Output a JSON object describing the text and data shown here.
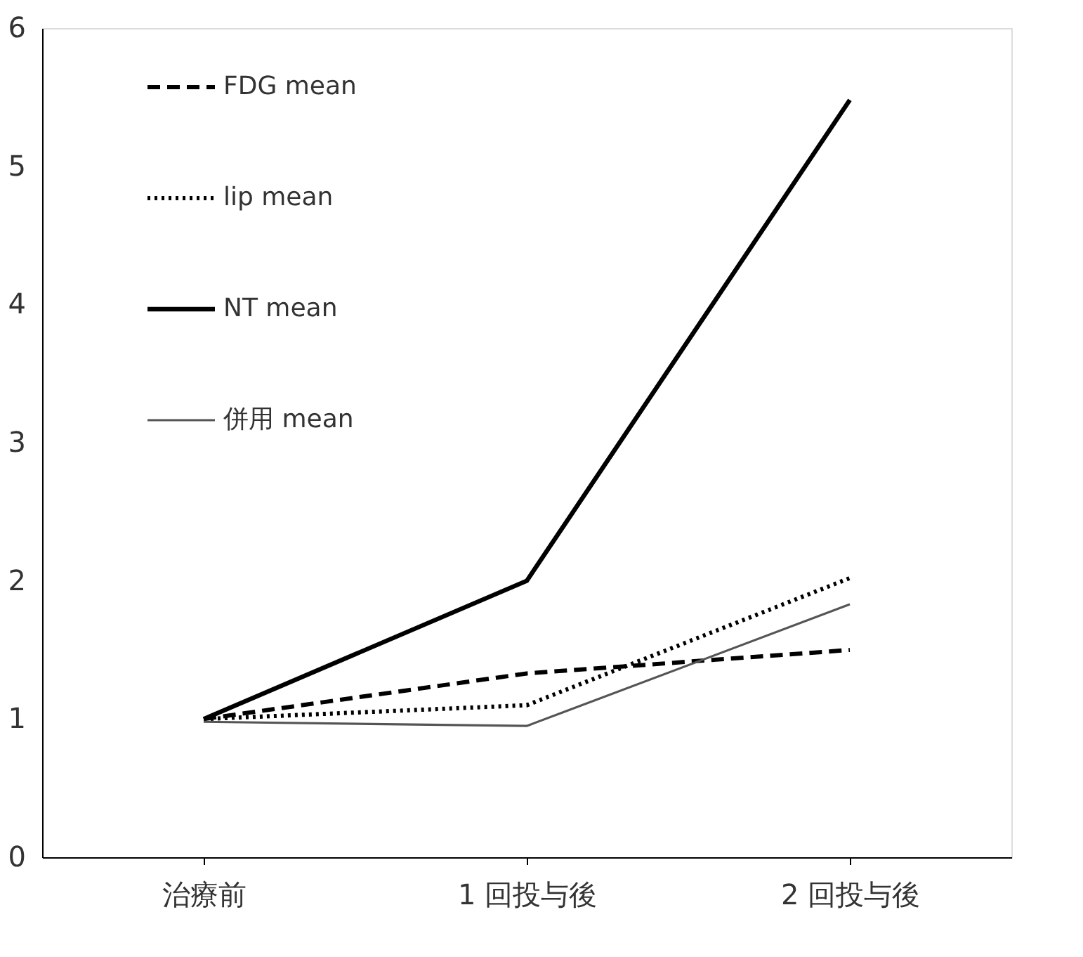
{
  "chart_data": {
    "type": "line",
    "categories": [
      "治療前",
      "1 回投与後",
      "2 回投与後"
    ],
    "series": [
      {
        "name": "FDG mean",
        "color": "#000000",
        "line_style": "dashed",
        "values": [
          1.0,
          1.33,
          1.5
        ]
      },
      {
        "name": "lip mean",
        "color": "#000000",
        "line_style": "dotted",
        "values": [
          1.0,
          1.1,
          2.02
        ]
      },
      {
        "name": "NT mean",
        "color": "#000000",
        "line_style": "solid",
        "values": [
          1.0,
          2.0,
          5.48
        ]
      },
      {
        "name": "併用 mean",
        "color": "#555555",
        "line_style": "solid",
        "values": [
          0.98,
          0.95,
          1.83
        ]
      }
    ],
    "ylim": [
      0,
      6
    ],
    "yticks": [
      0,
      1,
      2,
      3,
      4,
      5,
      6
    ],
    "grid": false,
    "legend": "top left",
    "marker": "none"
  }
}
